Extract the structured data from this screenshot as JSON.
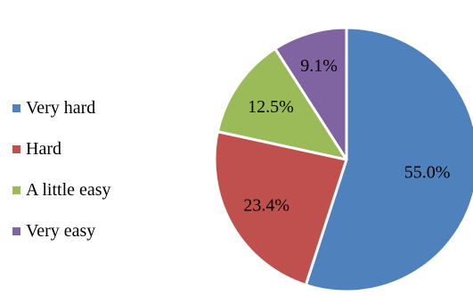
{
  "chart_data": {
    "type": "pie",
    "title": "",
    "legend_position": "left",
    "start_angle_deg": 0,
    "direction": "clockwise",
    "slices": [
      {
        "label": "Very hard",
        "value": 55.0,
        "display": "55.0%",
        "color": "#4f81bd"
      },
      {
        "label": "Hard",
        "value": 23.4,
        "display": "23.4%",
        "color": "#c0504d"
      },
      {
        "label": "A little easy",
        "value": 12.5,
        "display": "12.5%",
        "color": "#9bbb59"
      },
      {
        "label": "Very easy",
        "value": 9.1,
        "display": "9.1%",
        "color": "#8064a2"
      }
    ]
  }
}
